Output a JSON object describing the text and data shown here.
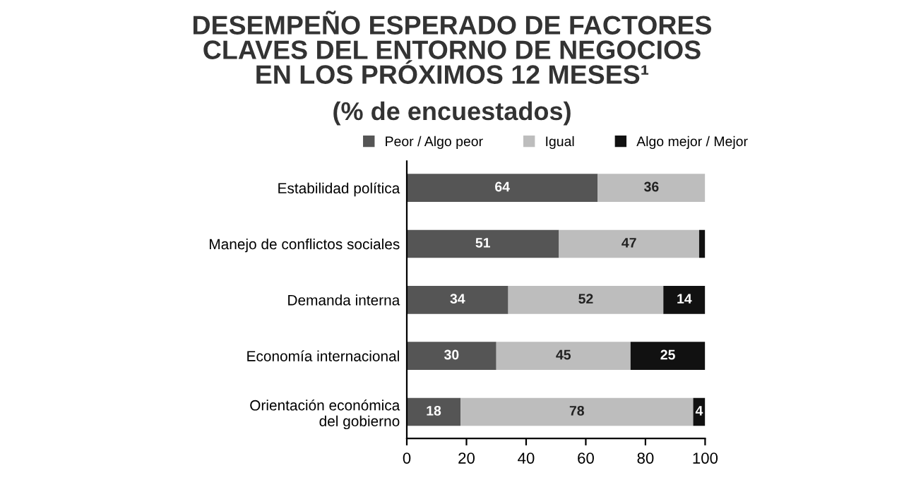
{
  "chart_data": {
    "type": "bar",
    "orientation": "horizontal",
    "stacked": true,
    "title": "DESEMPEÑO ESPERADO DE FACTORES\nCLAVES DEL ENTORNO DE NEGOCIOS\nEN LOS PRÓXIMOS 12 MESES¹",
    "subtitle": "(% de encuestados)",
    "categories": [
      "Estabilidad política",
      "Manejo de conflictos sociales",
      "Demanda interna",
      "Economía internacional",
      "Orientación económica\ndel gobierno"
    ],
    "series": [
      {
        "name": "Peor / Algo peor",
        "color": "#555555",
        "values": [
          64,
          51,
          34,
          30,
          18
        ],
        "value_labels": [
          "64",
          "51",
          "34",
          "30",
          "18"
        ]
      },
      {
        "name": "Igual",
        "color": "#bdbdbd",
        "values": [
          36,
          47,
          52,
          45,
          78
        ],
        "value_labels": [
          "36",
          "47",
          "52",
          "45",
          "78"
        ]
      },
      {
        "name": "Algo mejor / Mejor",
        "color": "#111111",
        "values": [
          0,
          2,
          14,
          25,
          4
        ],
        "value_labels": [
          null,
          null,
          "14",
          "25",
          "4"
        ]
      }
    ],
    "xlim": [
      0,
      100
    ],
    "xticks": [
      0,
      20,
      40,
      60,
      80,
      100
    ],
    "grid": false,
    "legend": "top"
  }
}
